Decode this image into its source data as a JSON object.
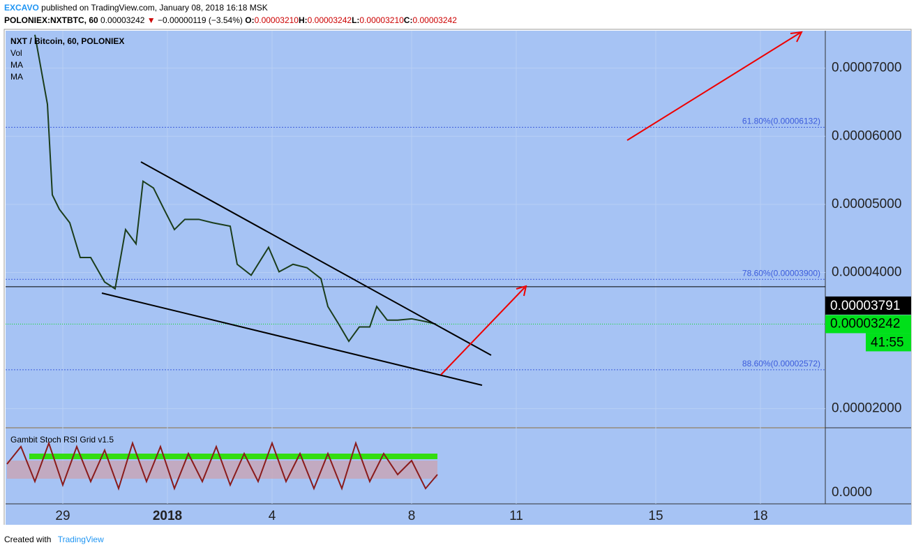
{
  "header": {
    "author": "EXCAVO",
    "published": "published on TradingView.com, January 08, 2018 16:18 MSK",
    "symbol": "POLONIEX:NXTBTC, 60",
    "last": "0.00003242",
    "change": "−0.00000119 (−3.54%)",
    "ohlc": [
      {
        "key": "O:",
        "val": "0.00003210"
      },
      {
        "key": "H:",
        "val": "0.00003242"
      },
      {
        "key": "L:",
        "val": "0.00003210"
      },
      {
        "key": "C:",
        "val": "0.00003242"
      }
    ]
  },
  "chart_data": {
    "type": "line",
    "series": [
      {
        "name": "NXT / Bitcoin, 60, POLONIEX",
        "color": "#1b3d1b",
        "x": [
          28.2,
          28.56,
          28.7,
          28.9,
          29.2,
          29.5,
          29.8,
          30.2,
          30.5,
          30.8,
          31.1,
          31.3,
          31.6,
          31.9,
          32.2,
          32.5,
          32.9,
          33.3,
          33.8,
          34.0,
          34.4,
          34.9,
          35.2,
          35.6,
          36.0,
          36.4,
          36.6,
          36.9,
          37.2,
          37.5,
          37.8,
          38.0,
          38.3,
          38.6,
          39.0,
          39.4,
          39.7
        ],
        "values": [
          7.49e-05,
          6.47e-05,
          5.14e-05,
          4.93e-05,
          4.73e-05,
          4.22e-05,
          4.22e-05,
          3.86e-05,
          3.76e-05,
          4.63e-05,
          4.42e-05,
          5.34e-05,
          5.24e-05,
          4.93e-05,
          4.63e-05,
          4.78e-05,
          4.78e-05,
          4.73e-05,
          4.68e-05,
          4.12e-05,
          3.96e-05,
          4.37e-05,
          4.01e-05,
          4.12e-05,
          4.07e-05,
          3.91e-05,
          3.5e-05,
          3.25e-05,
          2.99e-05,
          3.2e-05,
          3.2e-05,
          3.5e-05,
          3.3e-05,
          3.3e-05,
          3.32e-05,
          3.28e-05,
          3.242e-05
        ]
      }
    ],
    "legend_extra": [
      "Vol",
      "MA",
      "MA"
    ],
    "xlim": [
      27.36,
      50.86
    ],
    "xticks": [
      {
        "value": 29,
        "label": "29"
      },
      {
        "value": 32,
        "label": "2018"
      },
      {
        "value": 35,
        "label": "4"
      },
      {
        "value": 39,
        "label": "8"
      },
      {
        "value": 42,
        "label": "11"
      },
      {
        "value": 46,
        "label": "15"
      },
      {
        "value": 49,
        "label": "18"
      }
    ],
    "ylim": [
      1.73e-05,
      7.55e-05
    ],
    "yticks": [
      {
        "value": 2e-05,
        "label": "0.00002000"
      },
      {
        "value": 4e-05,
        "label": "0.00004000"
      },
      {
        "value": 5e-05,
        "label": "0.00005000"
      },
      {
        "value": 6e-05,
        "label": "0.00006000"
      },
      {
        "value": 7e-05,
        "label": "0.00007000"
      }
    ],
    "grid": true,
    "levels": [
      {
        "value": 6.132e-05,
        "label": "61.80%(0.00006132)",
        "color": "#3b5bdb"
      },
      {
        "value": 3.9e-05,
        "label": "78.60%(0.00003900)",
        "color": "#3b5bdb"
      },
      {
        "value": 2.572e-05,
        "label": "88.60%(0.00002572)",
        "color": "#3b5bdb"
      }
    ],
    "hline": {
      "value": 3.791e-05,
      "label": "0.00003791",
      "color": "#000000"
    },
    "last_price": {
      "value": 3.242e-05,
      "label": "0.00003242",
      "color": "#00e01a",
      "countdown": "41:55"
    }
  },
  "indicator_pane": {
    "title": "Gambit Stoch RSI Grid v1.5",
    "yticks": [
      {
        "value": 0,
        "label": "0.0000"
      }
    ]
  },
  "footer": {
    "created": "Created with",
    "brand": "TradingView"
  }
}
